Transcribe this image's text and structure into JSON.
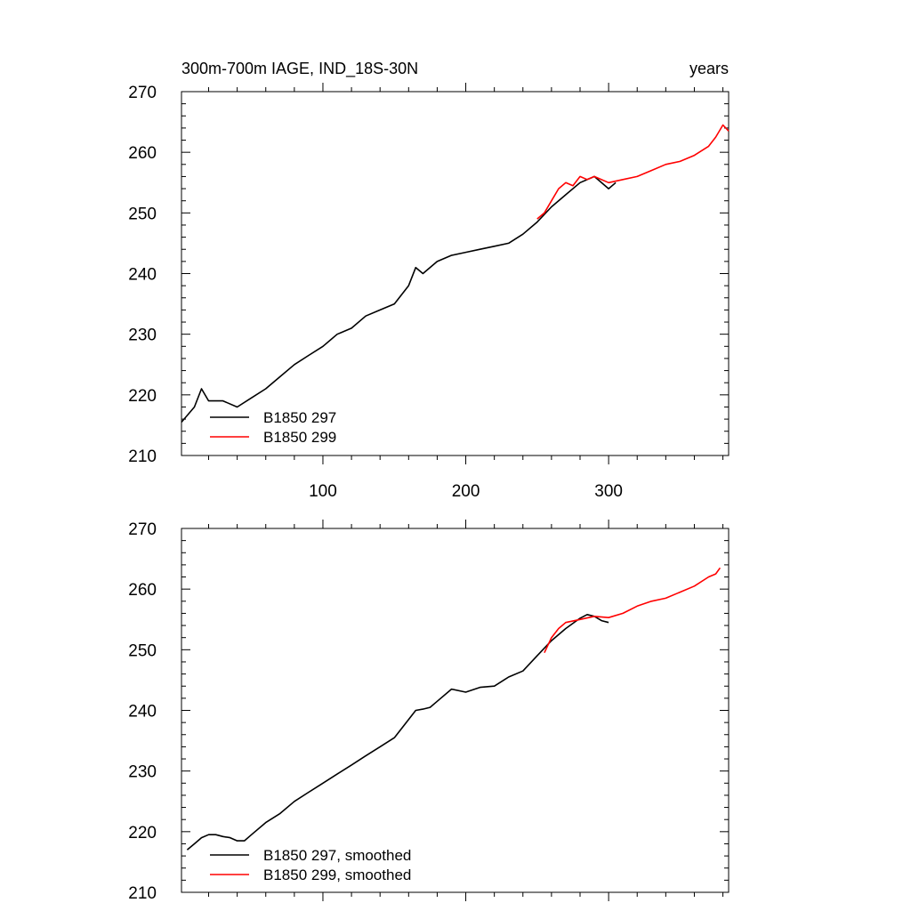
{
  "chart_data": [
    {
      "type": "line",
      "title": "300m-700m IAGE, IND_18S-30N",
      "units": "years",
      "xlim": [
        1,
        384
      ],
      "ylim": [
        210,
        270
      ],
      "yticks": [
        210,
        220,
        230,
        240,
        250,
        260,
        270
      ],
      "xticks": [
        100,
        200,
        300
      ],
      "xtick_labels": [
        "100",
        "200",
        "300"
      ],
      "series": [
        {
          "name": "B1850 297",
          "color": "#000000",
          "x": [
            1,
            10,
            15,
            20,
            30,
            40,
            50,
            60,
            70,
            80,
            90,
            100,
            110,
            120,
            130,
            140,
            150,
            160,
            165,
            170,
            180,
            190,
            200,
            210,
            220,
            230,
            240,
            250,
            260,
            270,
            280,
            290,
            300,
            305
          ],
          "y": [
            215.5,
            218,
            221,
            219,
            219,
            218,
            219.5,
            221,
            223,
            225,
            226.5,
            228,
            230,
            231,
            233,
            234,
            235,
            238,
            241,
            240,
            242,
            243,
            243.5,
            244,
            244.5,
            245,
            246.5,
            248.5,
            251,
            253,
            255,
            256,
            254,
            255
          ]
        },
        {
          "name": "B1850 299",
          "color": "#ff0000",
          "x": [
            250,
            255,
            260,
            265,
            270,
            275,
            280,
            285,
            290,
            300,
            310,
            320,
            330,
            340,
            350,
            360,
            370,
            375,
            380,
            384
          ],
          "y": [
            249,
            250,
            252,
            254,
            255,
            254.5,
            256,
            255.5,
            256,
            255,
            255.5,
            256,
            257,
            258,
            258.5,
            259.5,
            261,
            262.5,
            264.5,
            263.5
          ]
        }
      ],
      "legend": [
        "B1850 297",
        "B1850 299"
      ]
    },
    {
      "type": "line",
      "title": "",
      "xlim": [
        1,
        384
      ],
      "ylim": [
        210,
        270
      ],
      "yticks": [
        210,
        220,
        230,
        240,
        250,
        260,
        270
      ],
      "xticks": [
        100,
        200,
        300
      ],
      "series": [
        {
          "name": "B1850 297, smoothed",
          "color": "#000000",
          "x": [
            5,
            10,
            15,
            20,
            25,
            30,
            35,
            40,
            45,
            50,
            60,
            70,
            80,
            90,
            100,
            110,
            120,
            130,
            140,
            150,
            160,
            165,
            170,
            175,
            180,
            190,
            200,
            210,
            220,
            230,
            240,
            250,
            260,
            270,
            280,
            285,
            290,
            295,
            300
          ],
          "y": [
            217,
            218,
            219,
            219.5,
            219.5,
            219.2,
            219,
            218.5,
            218.5,
            219.5,
            221.5,
            223,
            225,
            226.5,
            228,
            229.5,
            231,
            232.5,
            234,
            235.5,
            238.5,
            240,
            240.2,
            240.5,
            241.5,
            243.5,
            243,
            243.8,
            244,
            245.5,
            246.5,
            249,
            251.5,
            253.5,
            255.2,
            255.8,
            255.5,
            254.8,
            254.5
          ]
        },
        {
          "name": "B1850 299, smoothed",
          "color": "#ff0000",
          "x": [
            255,
            260,
            265,
            270,
            280,
            290,
            300,
            310,
            320,
            330,
            340,
            350,
            360,
            370,
            375,
            378
          ],
          "y": [
            249.5,
            252,
            253.5,
            254.5,
            255,
            255.5,
            255.3,
            256,
            257.2,
            258,
            258.5,
            259.5,
            260.5,
            262,
            262.5,
            263.5
          ]
        }
      ],
      "legend": [
        "B1850 297, smoothed",
        "B1850 299, smoothed"
      ]
    }
  ]
}
